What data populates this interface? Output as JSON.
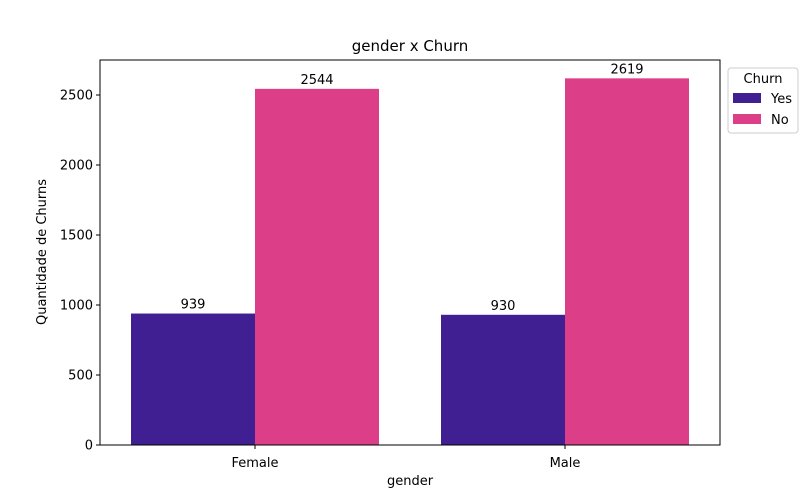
{
  "chart_data": {
    "type": "bar",
    "title": "gender x Churn",
    "xlabel": "gender",
    "ylabel": "Quantidade de Churns",
    "categories": [
      "Female",
      "Male"
    ],
    "series": [
      {
        "name": "Yes",
        "values": [
          939,
          930
        ],
        "color": "#3f1f91"
      },
      {
        "name": "No",
        "values": [
          2544,
          2619
        ],
        "color": "#dc3f88"
      }
    ],
    "ylim": [
      0,
      2750
    ],
    "yticks": [
      0,
      500,
      1000,
      1500,
      2000,
      2500
    ],
    "legend": {
      "title": "Churn",
      "placement": "outside-top-right"
    },
    "grid": false
  }
}
